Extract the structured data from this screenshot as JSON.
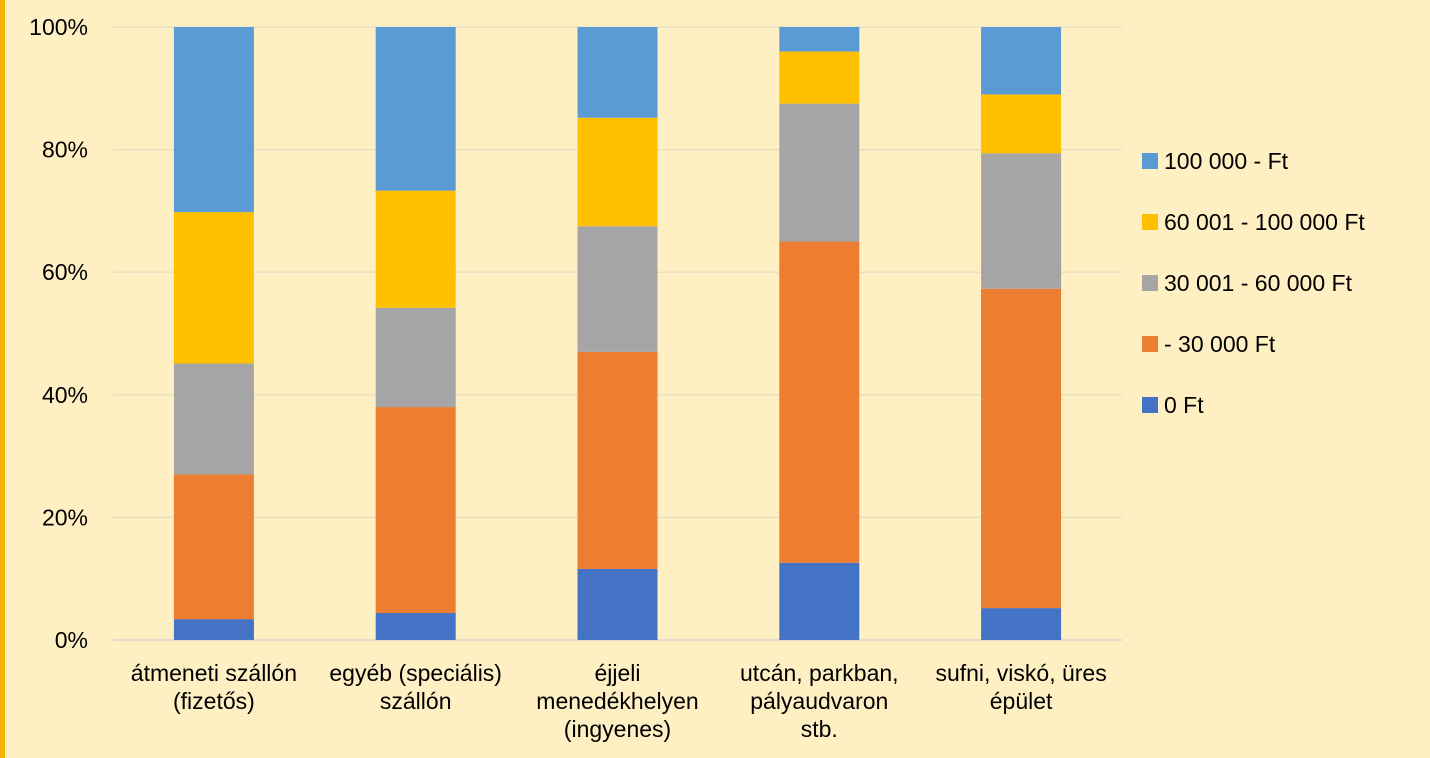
{
  "chart_data": {
    "type": "bar",
    "stacked": true,
    "percent": true,
    "title": "",
    "xlabel": "",
    "ylabel": "",
    "ylim": [
      0,
      100
    ],
    "yticks": [
      "0%",
      "20%",
      "40%",
      "60%",
      "80%",
      "100%"
    ],
    "grid": true,
    "legend_position": "right",
    "categories": [
      [
        "átmeneti szállón",
        "(fizetős)"
      ],
      [
        "egyéb (speciális)",
        "szállón"
      ],
      [
        "éjjeli",
        "menedékhelyen",
        "(ingyenes)"
      ],
      [
        "utcán, parkban,",
        "pályaudvaron",
        "stb."
      ],
      [
        "sufni, viskó, üres",
        "épület"
      ]
    ],
    "series": [
      {
        "name": "0 Ft",
        "color": "#4472C4",
        "values": [
          3.4,
          4.4,
          11.6,
          12.6,
          5.2
        ]
      },
      {
        "name": "- 30 000 Ft",
        "color": "#ED7D31",
        "values": [
          23.6,
          33.6,
          35.4,
          52.4,
          52.1
        ]
      },
      {
        "name": "30 001 - 60 000 Ft",
        "color": "#A5A5A5",
        "values": [
          18.1,
          16.2,
          20.5,
          22.5,
          22.1
        ]
      },
      {
        "name": "60 001 - 100 000 Ft",
        "color": "#FFC000",
        "values": [
          24.7,
          19.1,
          17.7,
          8.5,
          9.6
        ]
      },
      {
        "name": "100 000 - Ft",
        "color": "#5B9BD5",
        "values": [
          30.2,
          26.7,
          14.8,
          4.0,
          11.0
        ]
      }
    ]
  }
}
